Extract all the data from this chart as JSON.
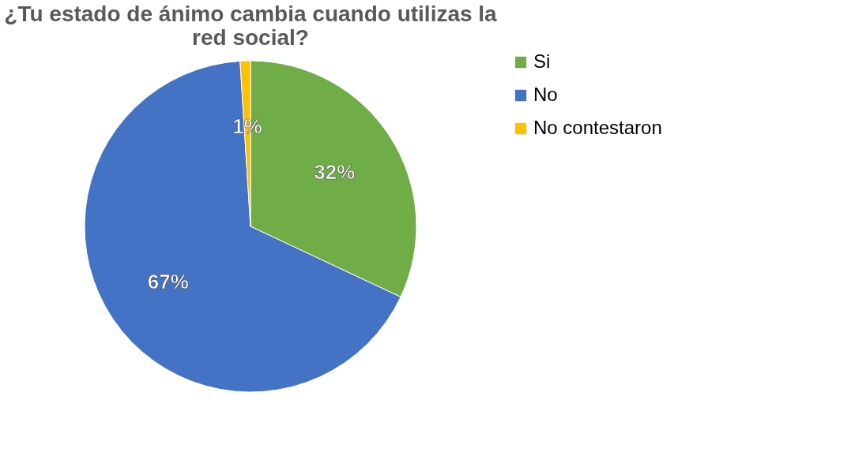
{
  "chart_data": {
    "type": "pie",
    "title": "¿Tu estado de ánimo cambia cuando utilizas la red social?",
    "categories": [
      "Si",
      "No",
      "No contestaron"
    ],
    "values": [
      32,
      67,
      1
    ],
    "colors": [
      "#70ad47",
      "#4472c4",
      "#ffc000"
    ],
    "value_labels": [
      "32%",
      "67%",
      "1%"
    ],
    "legend": "right"
  }
}
